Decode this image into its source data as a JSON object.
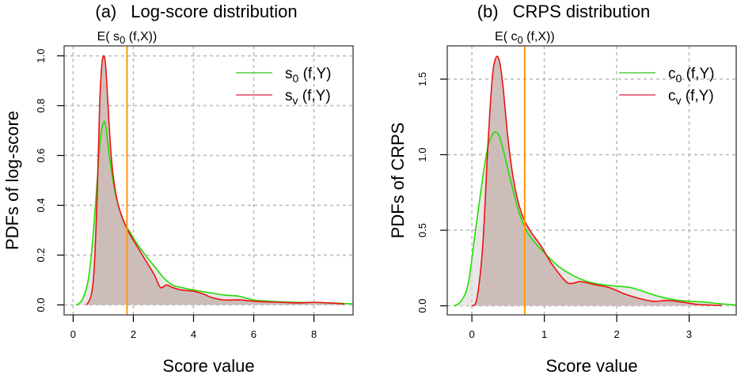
{
  "chart_data": [
    {
      "type": "area",
      "panel_label": "(a)",
      "title": "Log-score distribution",
      "xlabel": "Score value",
      "ylabel": "PDFs of log-score",
      "xlim": [
        -0.3,
        9.3
      ],
      "ylim": [
        -0.04,
        1.04
      ],
      "xticks": [
        0,
        2,
        4,
        6,
        8
      ],
      "yticks": [
        0.0,
        0.2,
        0.4,
        0.6,
        0.8,
        1.0
      ],
      "ytick_labels": [
        "0.0",
        "0.2",
        "0.4",
        "0.6",
        "0.8",
        "1.0"
      ],
      "grid": true,
      "legend": "top-right",
      "vline": {
        "x": 1.79,
        "label_main": "E( s",
        "label_sub": "0",
        "label_rest": " (f,X))",
        "color": "#FF9900"
      },
      "series": [
        {
          "name": "s0 (f,Y)",
          "legend_main": "s",
          "legend_sub": "0",
          "legend_rest": " (f,Y)",
          "color": "#22DD00",
          "fill": "#E4E4E2",
          "x": [
            0.1,
            0.3,
            0.5,
            0.65,
            0.8,
            0.9,
            1.0,
            1.08,
            1.2,
            1.35,
            1.5,
            1.7,
            1.9,
            2.1,
            2.4,
            2.7,
            3.0,
            3.3,
            3.6,
            4.0,
            4.5,
            5.0,
            5.5,
            6.0,
            6.5,
            7.0,
            7.5,
            8.0,
            8.5,
            9.0,
            9.3
          ],
          "y": [
            0.0,
            0.02,
            0.1,
            0.26,
            0.5,
            0.66,
            0.73,
            0.72,
            0.6,
            0.48,
            0.4,
            0.33,
            0.29,
            0.25,
            0.2,
            0.155,
            0.11,
            0.08,
            0.07,
            0.06,
            0.05,
            0.04,
            0.035,
            0.02,
            0.015,
            0.012,
            0.01,
            0.01,
            0.008,
            0.006,
            0.004
          ]
        },
        {
          "name": "sv (f,Y)",
          "legend_main": "s",
          "legend_sub": "v",
          "legend_rest": " (f,Y)",
          "color": "#EE1111",
          "fill": "#C8B5B2",
          "x": [
            0.45,
            0.6,
            0.7,
            0.8,
            0.88,
            0.95,
            1.02,
            1.08,
            1.15,
            1.25,
            1.35,
            1.5,
            1.7,
            1.9,
            2.1,
            2.4,
            2.7,
            2.9,
            3.1,
            3.3,
            3.6,
            4.0,
            4.3,
            4.6,
            5.0,
            5.5,
            6.0,
            6.5,
            7.0,
            7.5,
            8.0,
            8.5,
            9.0
          ],
          "y": [
            0.0,
            0.04,
            0.15,
            0.45,
            0.8,
            0.96,
            1.0,
            0.96,
            0.82,
            0.62,
            0.5,
            0.4,
            0.33,
            0.28,
            0.24,
            0.18,
            0.12,
            0.07,
            0.08,
            0.07,
            0.06,
            0.055,
            0.045,
            0.03,
            0.02,
            0.02,
            0.015,
            0.012,
            0.01,
            0.008,
            0.01,
            0.008,
            0.004
          ]
        }
      ]
    },
    {
      "type": "area",
      "panel_label": "(b)",
      "title": "CRPS distribution",
      "xlabel": "Score value",
      "ylabel": "PDFs of CRPS",
      "xlim": [
        -0.34,
        3.65
      ],
      "ylim": [
        -0.06,
        1.72
      ],
      "xticks": [
        0,
        1,
        2,
        3
      ],
      "yticks": [
        0.0,
        0.5,
        1.0,
        1.5
      ],
      "ytick_labels": [
        "0.0",
        "0.5",
        "1.0",
        "1.5"
      ],
      "grid": true,
      "legend": "top-right",
      "vline": {
        "x": 0.73,
        "label_main": "E( c",
        "label_sub": "0",
        "label_rest": " (f,X))",
        "color": "#FF9900"
      },
      "series": [
        {
          "name": "c0 (f,Y)",
          "legend_main": "c",
          "legend_sub": "0",
          "legend_rest": " (f,Y)",
          "color": "#22DD00",
          "fill": "#E4E4E2",
          "x": [
            -0.25,
            -0.15,
            -0.05,
            0.05,
            0.15,
            0.22,
            0.28,
            0.33,
            0.38,
            0.45,
            0.55,
            0.65,
            0.75,
            0.85,
            1.0,
            1.2,
            1.4,
            1.6,
            1.8,
            2.0,
            2.2,
            2.4,
            2.6,
            2.8,
            3.0,
            3.2,
            3.4,
            3.65
          ],
          "y": [
            0.0,
            0.03,
            0.15,
            0.5,
            0.85,
            1.05,
            1.13,
            1.15,
            1.12,
            1.0,
            0.8,
            0.62,
            0.5,
            0.43,
            0.35,
            0.26,
            0.2,
            0.16,
            0.14,
            0.13,
            0.12,
            0.09,
            0.06,
            0.04,
            0.03,
            0.025,
            0.015,
            0.005
          ]
        },
        {
          "name": "cv (f,Y)",
          "legend_main": "c",
          "legend_sub": "v",
          "legend_rest": " (f,Y)",
          "color": "#EE1111",
          "fill": "#C8B5B2",
          "x": [
            0.0,
            0.07,
            0.15,
            0.22,
            0.28,
            0.33,
            0.38,
            0.43,
            0.5,
            0.58,
            0.68,
            0.8,
            0.95,
            1.1,
            1.3,
            1.4,
            1.5,
            1.7,
            1.9,
            2.1,
            2.3,
            2.5,
            2.7,
            2.9,
            3.1,
            3.3,
            3.45
          ],
          "y": [
            0.0,
            0.05,
            0.4,
            1.05,
            1.5,
            1.64,
            1.62,
            1.45,
            1.1,
            0.82,
            0.62,
            0.5,
            0.4,
            0.28,
            0.16,
            0.15,
            0.16,
            0.14,
            0.12,
            0.08,
            0.05,
            0.03,
            0.035,
            0.025,
            0.01,
            0.005,
            0.002
          ]
        }
      ]
    }
  ]
}
